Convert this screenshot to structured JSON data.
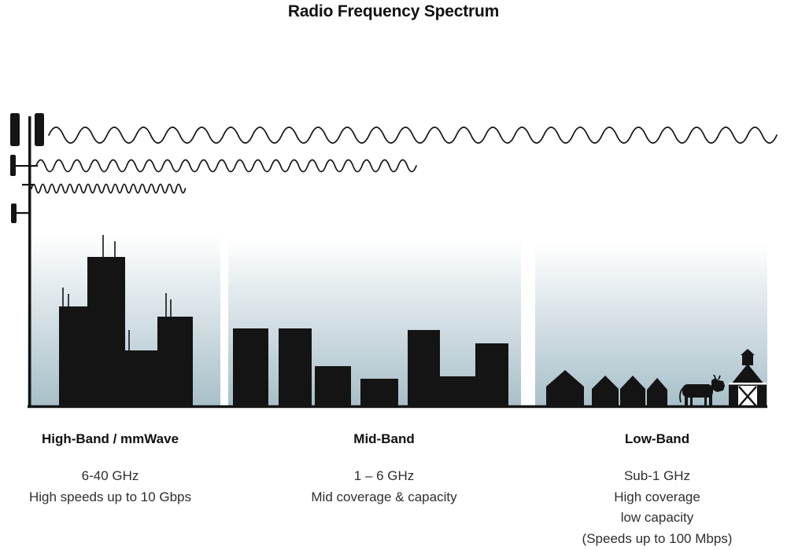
{
  "title": "Radio Frequency Spectrum",
  "bands": [
    {
      "id": "high-band",
      "name": "High-Band / mmWave",
      "frequency": "6-40 GHz",
      "details": [
        "High speeds up to 10 Gbps"
      ]
    },
    {
      "id": "mid-band",
      "name": "Mid-Band",
      "frequency": "1 – 6 GHz",
      "details": [
        "Mid coverage & capacity"
      ]
    },
    {
      "id": "low-band",
      "name": "Low-Band",
      "frequency": "Sub-1 GHz",
      "details": [
        "High coverage",
        "low capacity",
        "(Speeds up to 100 Mbps)"
      ]
    }
  ],
  "colors": {
    "silhouette": "#141414",
    "gradient_bottom": "#a7bfc9",
    "text": "#2e2e2e",
    "title": "#111111"
  },
  "icons": {
    "tower": "cell-tower-icon",
    "waves": [
      "low-band-wave-icon",
      "mid-band-wave-icon",
      "high-band-wave-icon"
    ],
    "scenes": [
      "city-skyline-icon",
      "midrise-buildings-icon",
      "rural-houses-icon",
      "cow-icon",
      "barn-icon"
    ]
  }
}
